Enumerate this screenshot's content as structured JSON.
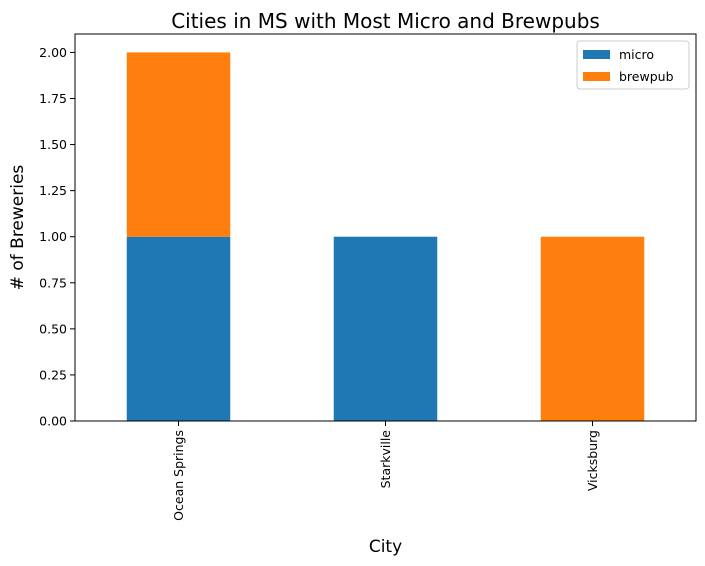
{
  "chart_data": {
    "type": "bar",
    "stacked": true,
    "title": "Cities in MS with Most Micro and Brewpubs",
    "xlabel": "City",
    "ylabel": "# of Breweries",
    "categories": [
      "Ocean Springs",
      "Starkville",
      "Vicksburg"
    ],
    "series": [
      {
        "name": "micro",
        "color": "#1f77b4",
        "values": [
          1,
          1,
          0
        ]
      },
      {
        "name": "brewpub",
        "color": "#ff7f0e",
        "values": [
          1,
          0,
          1
        ]
      }
    ],
    "ylim": [
      0,
      2.1
    ],
    "yticks": [
      "0.00",
      "0.25",
      "0.50",
      "0.75",
      "1.00",
      "1.25",
      "1.50",
      "1.75",
      "2.00"
    ],
    "grid": false,
    "legend_position": "top-right"
  }
}
